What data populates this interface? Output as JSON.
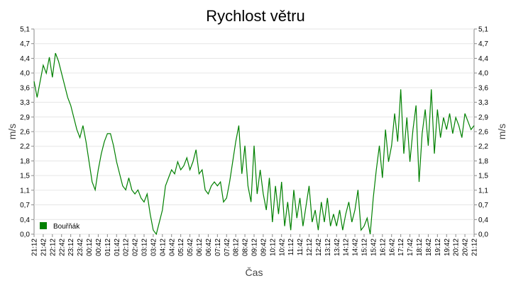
{
  "chart_data": {
    "type": "line",
    "title": "Rychlost větru",
    "xlabel": "Čas",
    "ylabel": "m/s",
    "categories": [
      "21:12",
      null,
      null,
      "21:42",
      null,
      null,
      "22:12",
      null,
      null,
      "22:42",
      null,
      null,
      "23:12",
      null,
      null,
      "23:42",
      null,
      null,
      "00:12",
      null,
      null,
      "00:42",
      null,
      null,
      "01:12",
      null,
      null,
      "01:42",
      null,
      null,
      "02:12",
      null,
      null,
      "02:42",
      null,
      null,
      "03:12",
      null,
      null,
      "03:42",
      null,
      null,
      "04:12",
      null,
      null,
      "04:42",
      null,
      null,
      "05:12",
      null,
      null,
      "05:42",
      null,
      null,
      "06:12",
      null,
      null,
      "06:42",
      null,
      null,
      "07:12",
      null,
      null,
      "07:42",
      null,
      null,
      "08:12",
      null,
      null,
      "08:42",
      null,
      null,
      "09:12",
      null,
      null,
      "09:42",
      null,
      null,
      "10:12",
      null,
      null,
      "10:42",
      null,
      null,
      "11:12",
      null,
      null,
      "11:42",
      null,
      null,
      "12:12",
      null,
      null,
      "12:42",
      null,
      null,
      "13:12",
      null,
      null,
      "13:42",
      null,
      null,
      "14:12",
      null,
      null,
      "14:42",
      null,
      null,
      "15:12",
      null,
      null,
      "15:42",
      null,
      null,
      "16:12",
      null,
      null,
      "16:42",
      null,
      null,
      "17:12",
      null,
      null,
      "17:42",
      null,
      null,
      "18:12",
      null,
      null,
      "18:42",
      null,
      null,
      "19:12",
      null,
      null,
      "19:42",
      null,
      null,
      "20:12",
      null,
      null,
      "20:42",
      null,
      null,
      "21:12"
    ],
    "series": [
      {
        "name": "Bouřňák",
        "color": "#008000",
        "values": [
          3.8,
          3.4,
          3.8,
          4.2,
          4.0,
          4.4,
          3.9,
          4.5,
          4.3,
          4.0,
          3.7,
          3.4,
          3.2,
          2.9,
          2.6,
          2.4,
          2.7,
          2.3,
          1.8,
          1.3,
          1.1,
          1.6,
          2.0,
          2.3,
          2.5,
          2.5,
          2.2,
          1.8,
          1.5,
          1.2,
          1.1,
          1.4,
          1.1,
          1.0,
          1.1,
          0.9,
          0.8,
          1.0,
          0.5,
          0.1,
          0.0,
          0.3,
          0.6,
          1.2,
          1.4,
          1.6,
          1.5,
          1.8,
          1.6,
          1.7,
          1.9,
          1.6,
          1.8,
          2.1,
          1.5,
          1.6,
          1.1,
          1.0,
          1.2,
          1.3,
          1.2,
          1.3,
          0.8,
          0.9,
          1.3,
          1.8,
          2.3,
          2.7,
          1.5,
          2.2,
          1.2,
          0.8,
          2.2,
          1.0,
          1.6,
          1.0,
          0.6,
          1.4,
          0.3,
          1.2,
          0.5,
          1.3,
          0.2,
          0.8,
          0.1,
          1.1,
          0.4,
          0.9,
          0.2,
          0.7,
          1.2,
          0.3,
          0.6,
          0.1,
          0.8,
          0.3,
          0.9,
          0.2,
          0.5,
          0.2,
          0.6,
          0.1,
          0.5,
          0.8,
          0.3,
          0.6,
          1.1,
          0.1,
          0.2,
          0.4,
          0.0,
          0.9,
          1.6,
          2.2,
          1.4,
          2.6,
          1.8,
          2.2,
          3.0,
          2.3,
          3.6,
          2.0,
          2.9,
          1.8,
          2.6,
          3.2,
          1.3,
          2.5,
          3.1,
          2.2,
          3.6,
          2.0,
          3.1,
          2.4,
          2.9,
          2.6,
          3.0,
          2.5,
          2.9,
          2.7,
          2.4,
          3.0,
          2.8,
          2.6,
          2.7
        ]
      }
    ],
    "ylim": [
      0,
      5.1
    ],
    "yticks": [
      {
        "value": 0,
        "label": "0,0"
      },
      {
        "value": 0.364,
        "label": "0,4"
      },
      {
        "value": 0.729,
        "label": "0,7"
      },
      {
        "value": 1.093,
        "label": "1,1"
      },
      {
        "value": 1.457,
        "label": "1,5"
      },
      {
        "value": 1.821,
        "label": "1,8"
      },
      {
        "value": 2.186,
        "label": "2,2"
      },
      {
        "value": 2.55,
        "label": "2,6"
      },
      {
        "value": 2.914,
        "label": "2,9"
      },
      {
        "value": 3.279,
        "label": "3,3"
      },
      {
        "value": 3.643,
        "label": "3,6"
      },
      {
        "value": 4.007,
        "label": "4,0"
      },
      {
        "value": 4.371,
        "label": "4,4"
      },
      {
        "value": 4.736,
        "label": "4,7"
      },
      {
        "value": 5.1,
        "label": "5,1"
      }
    ],
    "grid": true,
    "legend": "lower left"
  }
}
